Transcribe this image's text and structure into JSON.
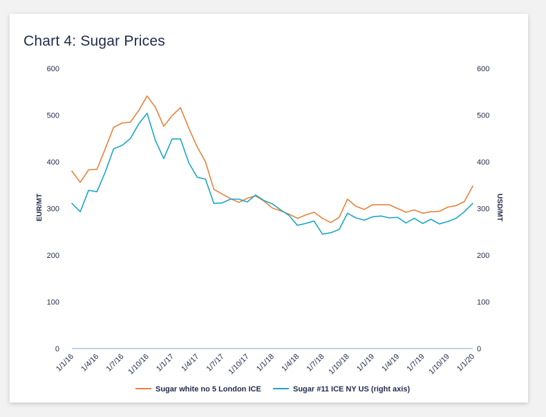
{
  "title": "Chart 4: Sugar Prices",
  "colors": {
    "series1": "#e8813a",
    "series2": "#1aa6c8",
    "axis": "#7fa9c9",
    "text": "#1f2a4a"
  },
  "chart_data": {
    "type": "line",
    "title": "Chart 4: Sugar Prices",
    "ylabel_left": "EUR/MT",
    "ylabel_right": "USD/MT",
    "ylim_left": [
      0,
      600
    ],
    "ylim_right": [
      0,
      600
    ],
    "yticks": [
      0,
      100,
      200,
      300,
      400,
      500,
      600
    ],
    "xlim": [
      "1/1/16",
      "1/1/20"
    ],
    "x_tick_labels": [
      "1/1/16",
      "1/4/16",
      "1/7/16",
      "1/10/16",
      "1/1/17",
      "1/4/17",
      "1/7/17",
      "1/10/17",
      "1/1/18",
      "1/4/18",
      "1/7/18",
      "1/10/18",
      "1/1/19",
      "1/4/19",
      "1/7/19",
      "1/10/19",
      "1/1/20"
    ],
    "grid": false,
    "legend_position": "bottom",
    "series": [
      {
        "name": "Sugar white no 5 London ICE",
        "axis": "left",
        "values": [
          380,
          356,
          383,
          384,
          428,
          474,
          483,
          485,
          510,
          541,
          517,
          476,
          499,
          516,
          472,
          432,
          400,
          341,
          331,
          321,
          313,
          322,
          327,
          316,
          301,
          295,
          288,
          279,
          286,
          292,
          279,
          270,
          281,
          320,
          305,
          298,
          308,
          308,
          308,
          300,
          292,
          297,
          290,
          293,
          294,
          303,
          306,
          315,
          348
        ]
      },
      {
        "name": "Sugar #11 ICE NY US (right axis)",
        "axis": "right",
        "values": [
          311,
          293,
          339,
          336,
          378,
          428,
          435,
          450,
          481,
          504,
          446,
          407,
          449,
          449,
          398,
          367,
          363,
          311,
          312,
          320,
          320,
          314,
          329,
          317,
          310,
          297,
          285,
          264,
          268,
          273,
          245,
          248,
          255,
          290,
          280,
          275,
          282,
          284,
          280,
          281,
          269,
          279,
          268,
          277,
          267,
          272,
          279,
          293,
          311
        ]
      }
    ]
  }
}
